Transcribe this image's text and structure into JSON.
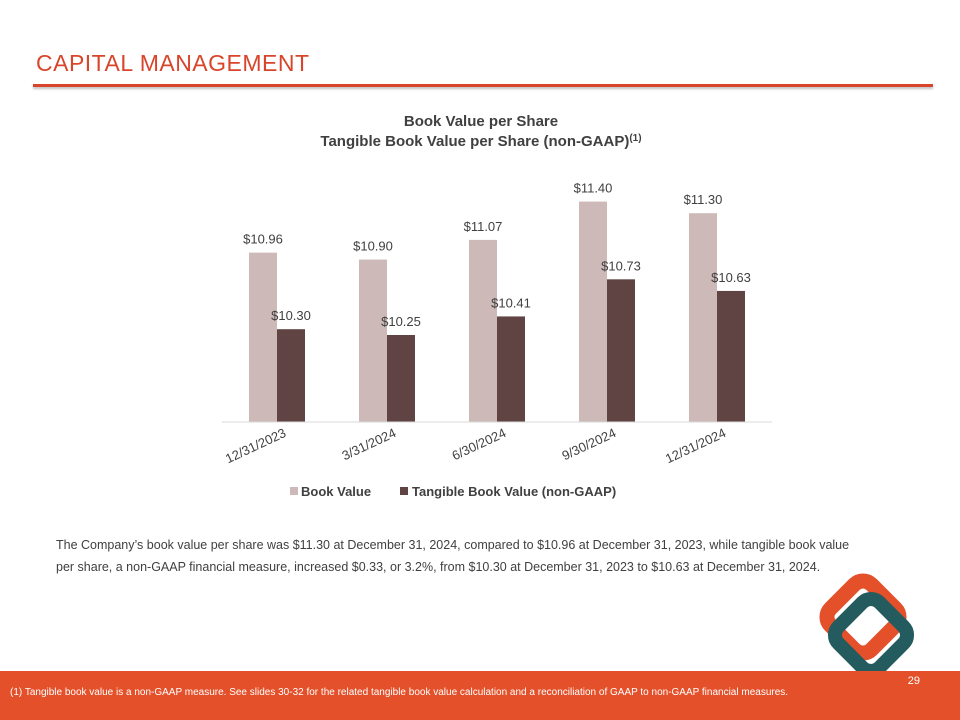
{
  "page": {
    "title": "CAPITAL MANAGEMENT",
    "body_text": "The Company’s book value per share was $11.30 at December 31, 2024, compared to $10.96 at December 31, 2023, while tangible book value per share, a non-GAAP financial measure, increased $0.33, or 3.2%, from $10.30 at December 31, 2023 to $10.63 at December 31, 2024.",
    "footnote": "(1) Tangible book value is a non-GAAP measure.  See slides 30-32 for the related tangible book value calculation and a reconciliation of GAAP to non-GAAP financial measures.",
    "page_number": "29"
  },
  "chart_data": {
    "type": "bar",
    "title": "Book Value per Share",
    "subtitle": "Tangible Book Value per Share (non-GAAP)",
    "subtitle_sup": "(1)",
    "categories": [
      "12/31/2023",
      "3/31/2024",
      "6/30/2024",
      "9/30/2024",
      "12/31/2024"
    ],
    "series": [
      {
        "name": "Book Value",
        "color": "#cdb9b8",
        "values": [
          10.96,
          10.9,
          11.07,
          11.4,
          11.3
        ],
        "labels": [
          "$10.96",
          "$10.90",
          "$11.07",
          "$11.40",
          "$11.30"
        ]
      },
      {
        "name": "Tangible Book Value (non-GAAP)",
        "color": "#5f4443",
        "values": [
          10.3,
          10.25,
          10.41,
          10.73,
          10.63
        ],
        "labels": [
          "$10.30",
          "$10.25",
          "$10.41",
          "$10.73",
          "$10.63"
        ]
      }
    ],
    "ylim": [
      9.5,
      11.5
    ],
    "gridlines": false,
    "legend": "bottom"
  },
  "logo": {
    "outer_color": "#e4502a",
    "inner_color": "#245b5f"
  }
}
